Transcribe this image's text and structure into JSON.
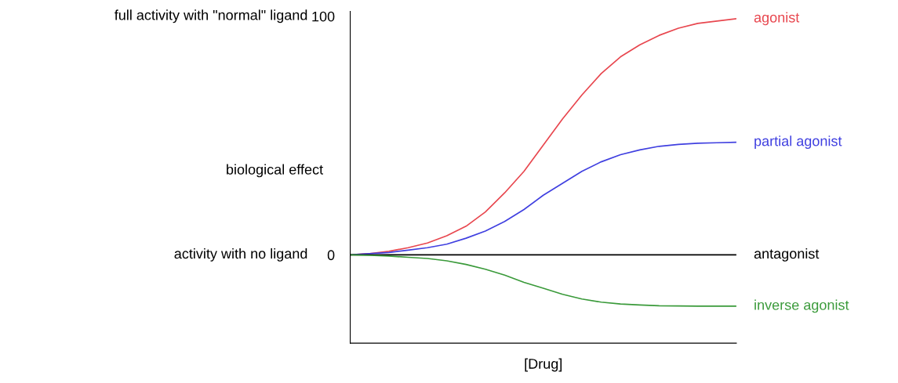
{
  "chart_data": {
    "type": "line",
    "xlabel": "[Drug]",
    "ylabel": "biological effect",
    "categories": [
      null,
      null,
      null,
      null,
      null,
      null,
      null,
      null,
      null,
      null,
      null,
      null,
      null,
      null,
      null,
      null,
      null,
      null,
      null,
      null,
      null
    ],
    "series": [
      {
        "name": "agonist",
        "color": "#e8474f",
        "values": [
          0,
          0.5,
          1.5,
          3,
          5,
          8,
          12,
          18,
          26,
          35,
          46,
          57,
          67,
          76,
          83,
          88,
          92,
          95,
          97,
          98,
          99
        ]
      },
      {
        "name": "partial agonist",
        "color": "#4040e0",
        "values": [
          0,
          0.5,
          1,
          2,
          3,
          4.5,
          7,
          10,
          14,
          19,
          25,
          30,
          35,
          39,
          42,
          44,
          45.5,
          46.3,
          46.8,
          47,
          47.2
        ]
      },
      {
        "name": "antagonist",
        "color": "#000000",
        "values": [
          0,
          0,
          0,
          0,
          0,
          0,
          0,
          0,
          0,
          0,
          0,
          0,
          0,
          0,
          0,
          0,
          0,
          0,
          0,
          0,
          0
        ]
      },
      {
        "name": "inverse agonist",
        "color": "#3a9a3a",
        "values": [
          0,
          -0.2,
          -0.5,
          -1,
          -1.5,
          -2.5,
          -4,
          -6,
          -8.5,
          -11.5,
          -14,
          -16.5,
          -18.5,
          -19.8,
          -20.6,
          -21,
          -21.3,
          -21.4,
          -21.5,
          -21.5,
          -21.5
        ]
      }
    ],
    "ylim": [
      -37,
      102
    ],
    "yticks": [
      0,
      100
    ],
    "tick_labels": "y",
    "grid": false,
    "legend": false,
    "marker": "none",
    "line_style": "solid",
    "annotations": [
      "full activity with \"normal\" ligand",
      "activity with no ligand"
    ]
  }
}
